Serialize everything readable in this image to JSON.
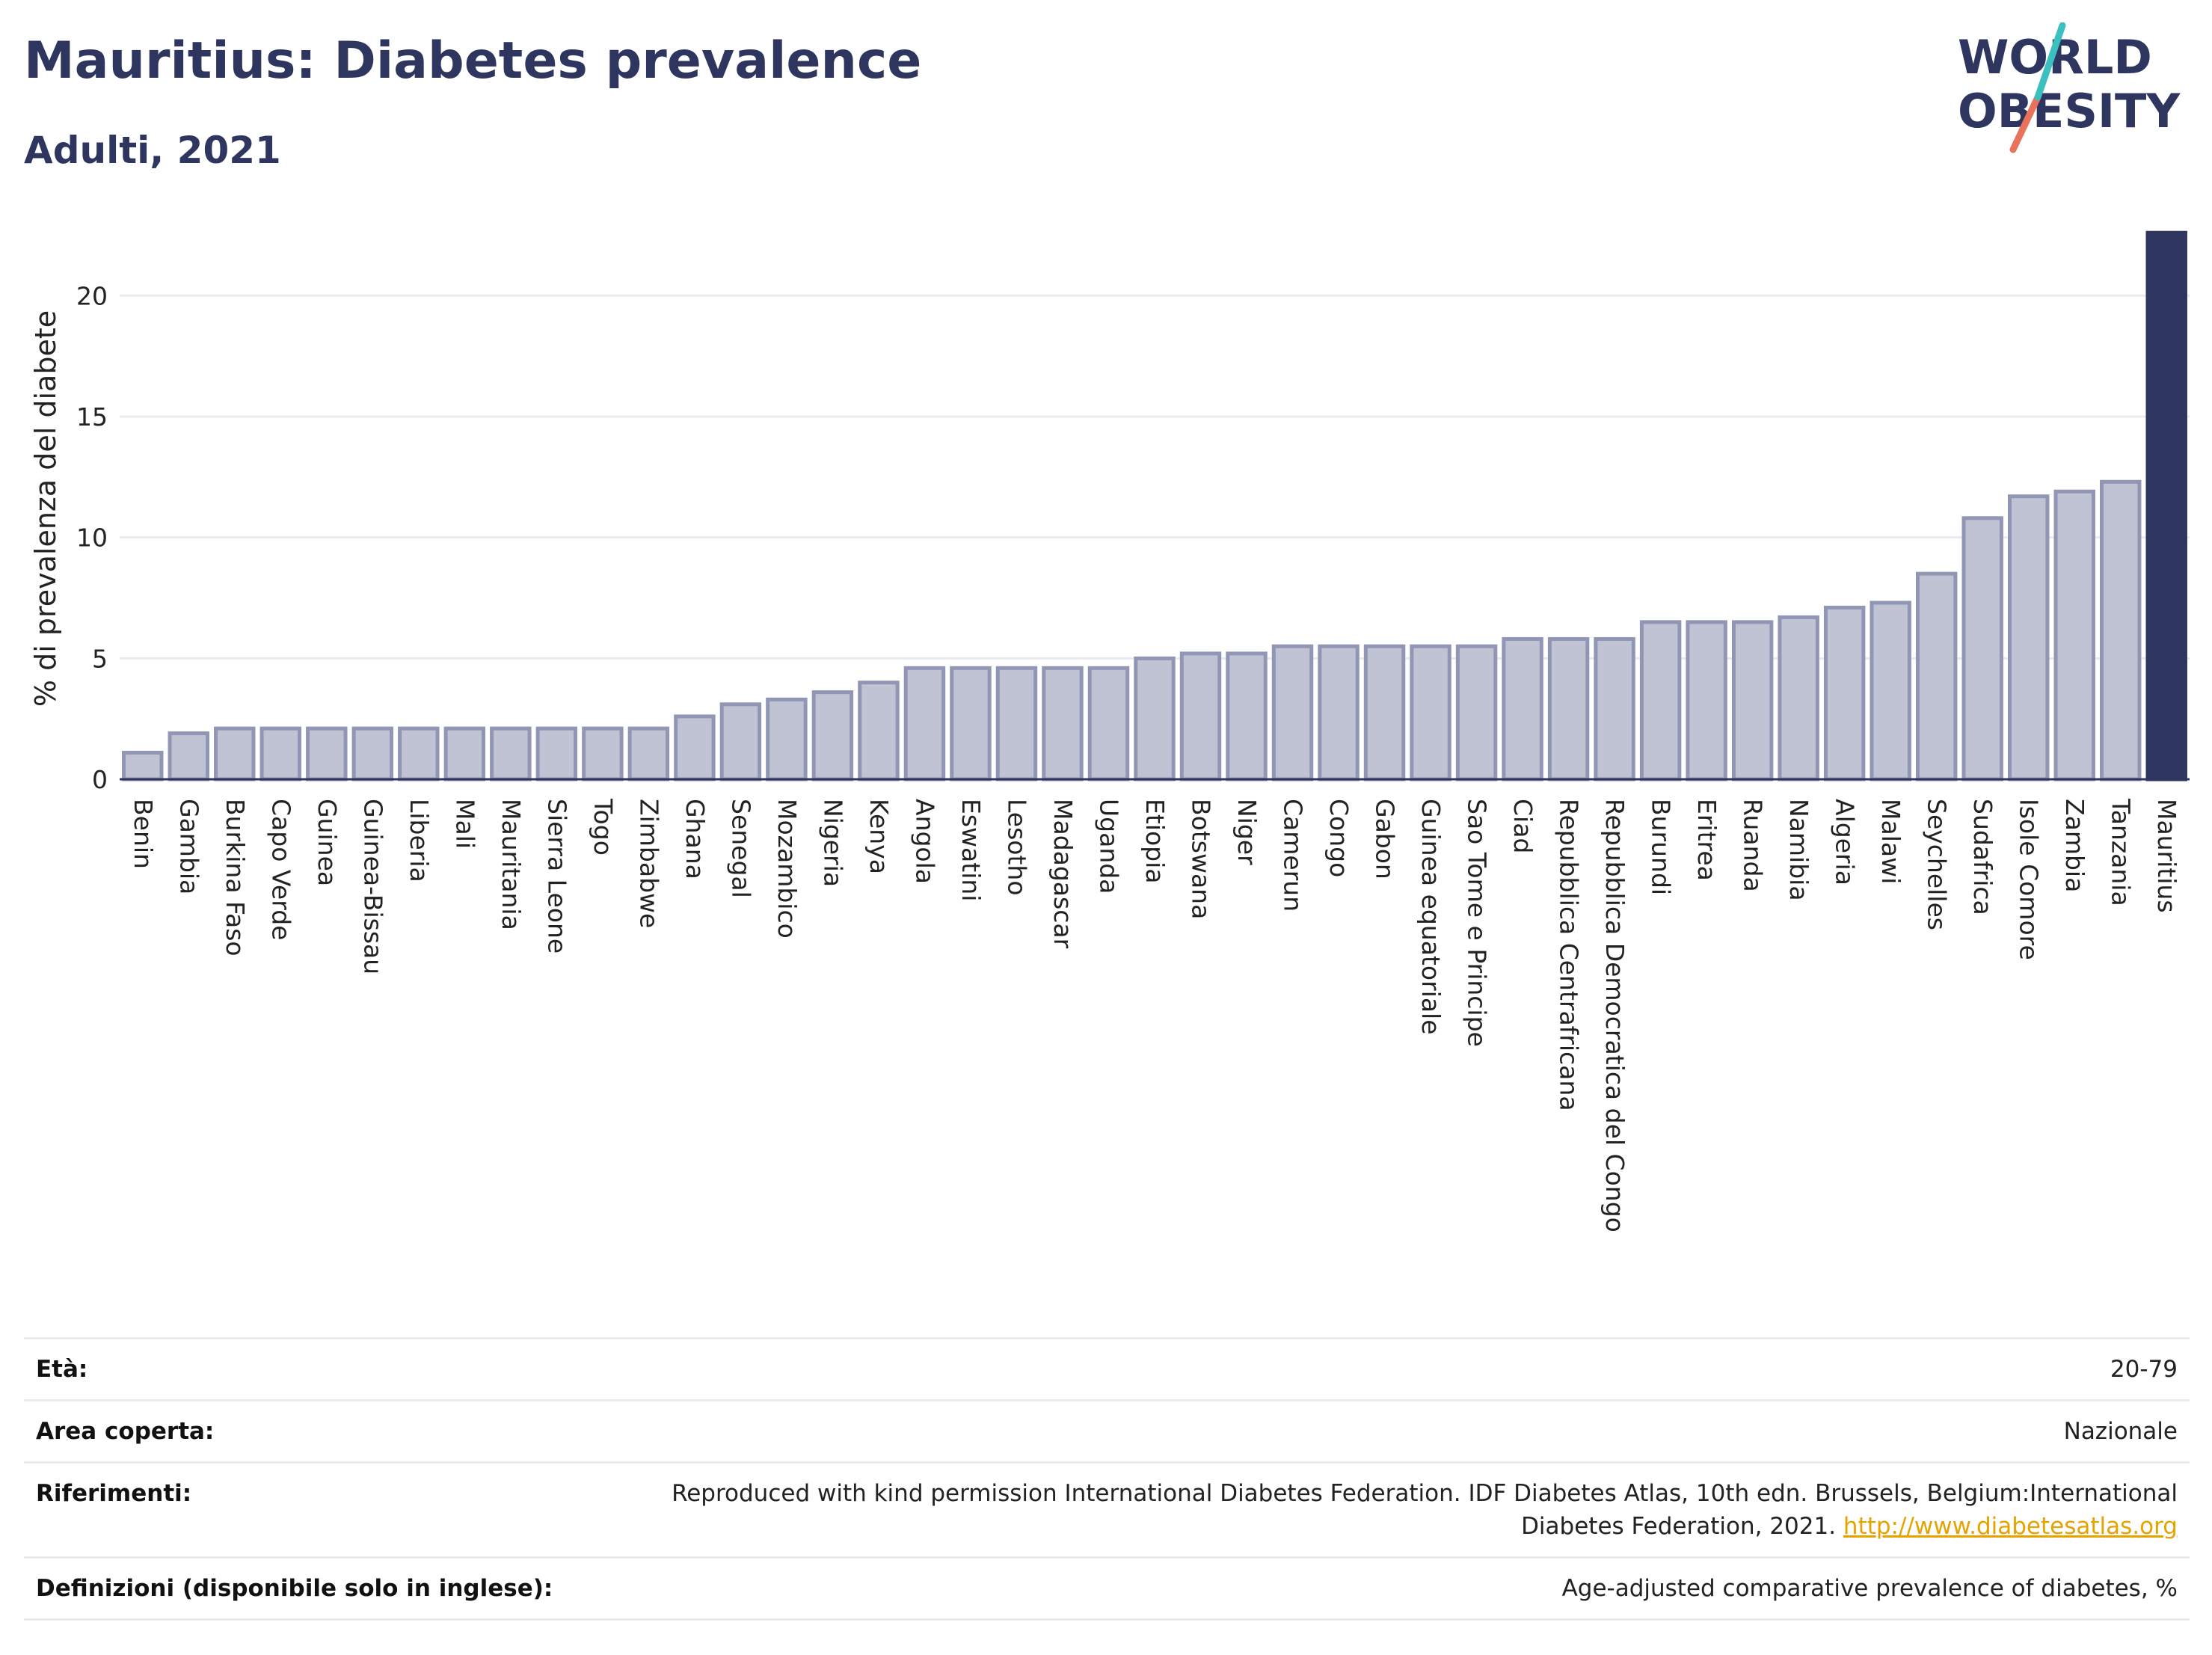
{
  "header": {
    "title": "Mauritius: Diabetes prevalence",
    "subtitle": "Adulti, 2021"
  },
  "logo": {
    "line1": "WORLD",
    "line2": "OBESITY"
  },
  "colors": {
    "title": "#2e3660",
    "bar_default": "#bfc3d3",
    "bar_default_stroke": "#9096b3",
    "bar_highlight": "#2e3660",
    "grid": "#e8ecef",
    "logo_teal": "#3bbfbf",
    "logo_coral": "#e8725c",
    "link": "#e5a300"
  },
  "chart_data": {
    "type": "bar",
    "ylabel": "% di prevalenza del diabete",
    "ylim": [
      0,
      22.7
    ],
    "yticks": [
      0,
      5,
      10,
      15,
      20
    ],
    "grid": true,
    "highlight": "Mauritius",
    "categories": [
      "Benin",
      "Gambia",
      "Burkina Faso",
      "Capo Verde",
      "Guinea",
      "Guinea-Bissau",
      "Liberia",
      "Mali",
      "Mauritania",
      "Sierra Leone",
      "Togo",
      "Zimbabwe",
      "Ghana",
      "Senegal",
      "Mozambico",
      "Nigeria",
      "Kenya",
      "Angola",
      "Eswatini",
      "Lesotho",
      "Madagascar",
      "Uganda",
      "Etiopia",
      "Botswana",
      "Niger",
      "Camerun",
      "Congo",
      "Gabon",
      "Guinea equatoriale",
      "Sao Tome e Principe",
      "Ciad",
      "Repubblica Centrafricana",
      "Repubblica Democratica del Congo",
      "Burundi",
      "Eritrea",
      "Ruanda",
      "Namibia",
      "Algeria",
      "Malawi",
      "Seychelles",
      "Sudafrica",
      "Isole Comore",
      "Zambia",
      "Tanzania",
      "Mauritius"
    ],
    "values": [
      1.1,
      1.9,
      2.1,
      2.1,
      2.1,
      2.1,
      2.1,
      2.1,
      2.1,
      2.1,
      2.1,
      2.1,
      2.6,
      3.1,
      3.3,
      3.6,
      4.0,
      4.6,
      4.6,
      4.6,
      4.6,
      4.6,
      5.0,
      5.2,
      5.2,
      5.5,
      5.5,
      5.5,
      5.5,
      5.5,
      5.8,
      5.8,
      5.8,
      6.5,
      6.5,
      6.5,
      6.7,
      7.1,
      7.3,
      8.5,
      10.8,
      11.7,
      11.9,
      12.3,
      22.6
    ]
  },
  "meta": [
    {
      "label": "Età:",
      "value": "20-79"
    },
    {
      "label": "Area coperta:",
      "value": "Nazionale"
    },
    {
      "label": "Riferimenti:",
      "value_line1": "Reproduced with kind permission International Diabetes Federation.  IDF Diabetes Atlas, 10th edn. Brussels, Belgium:International",
      "value_line2": "Diabetes Federation, 2021.",
      "link": "http://www.diabetesatlas.org"
    },
    {
      "label": "Definizioni (disponibile solo in inglese):",
      "value": "Age-adjusted comparative prevalence of diabetes, %"
    }
  ]
}
